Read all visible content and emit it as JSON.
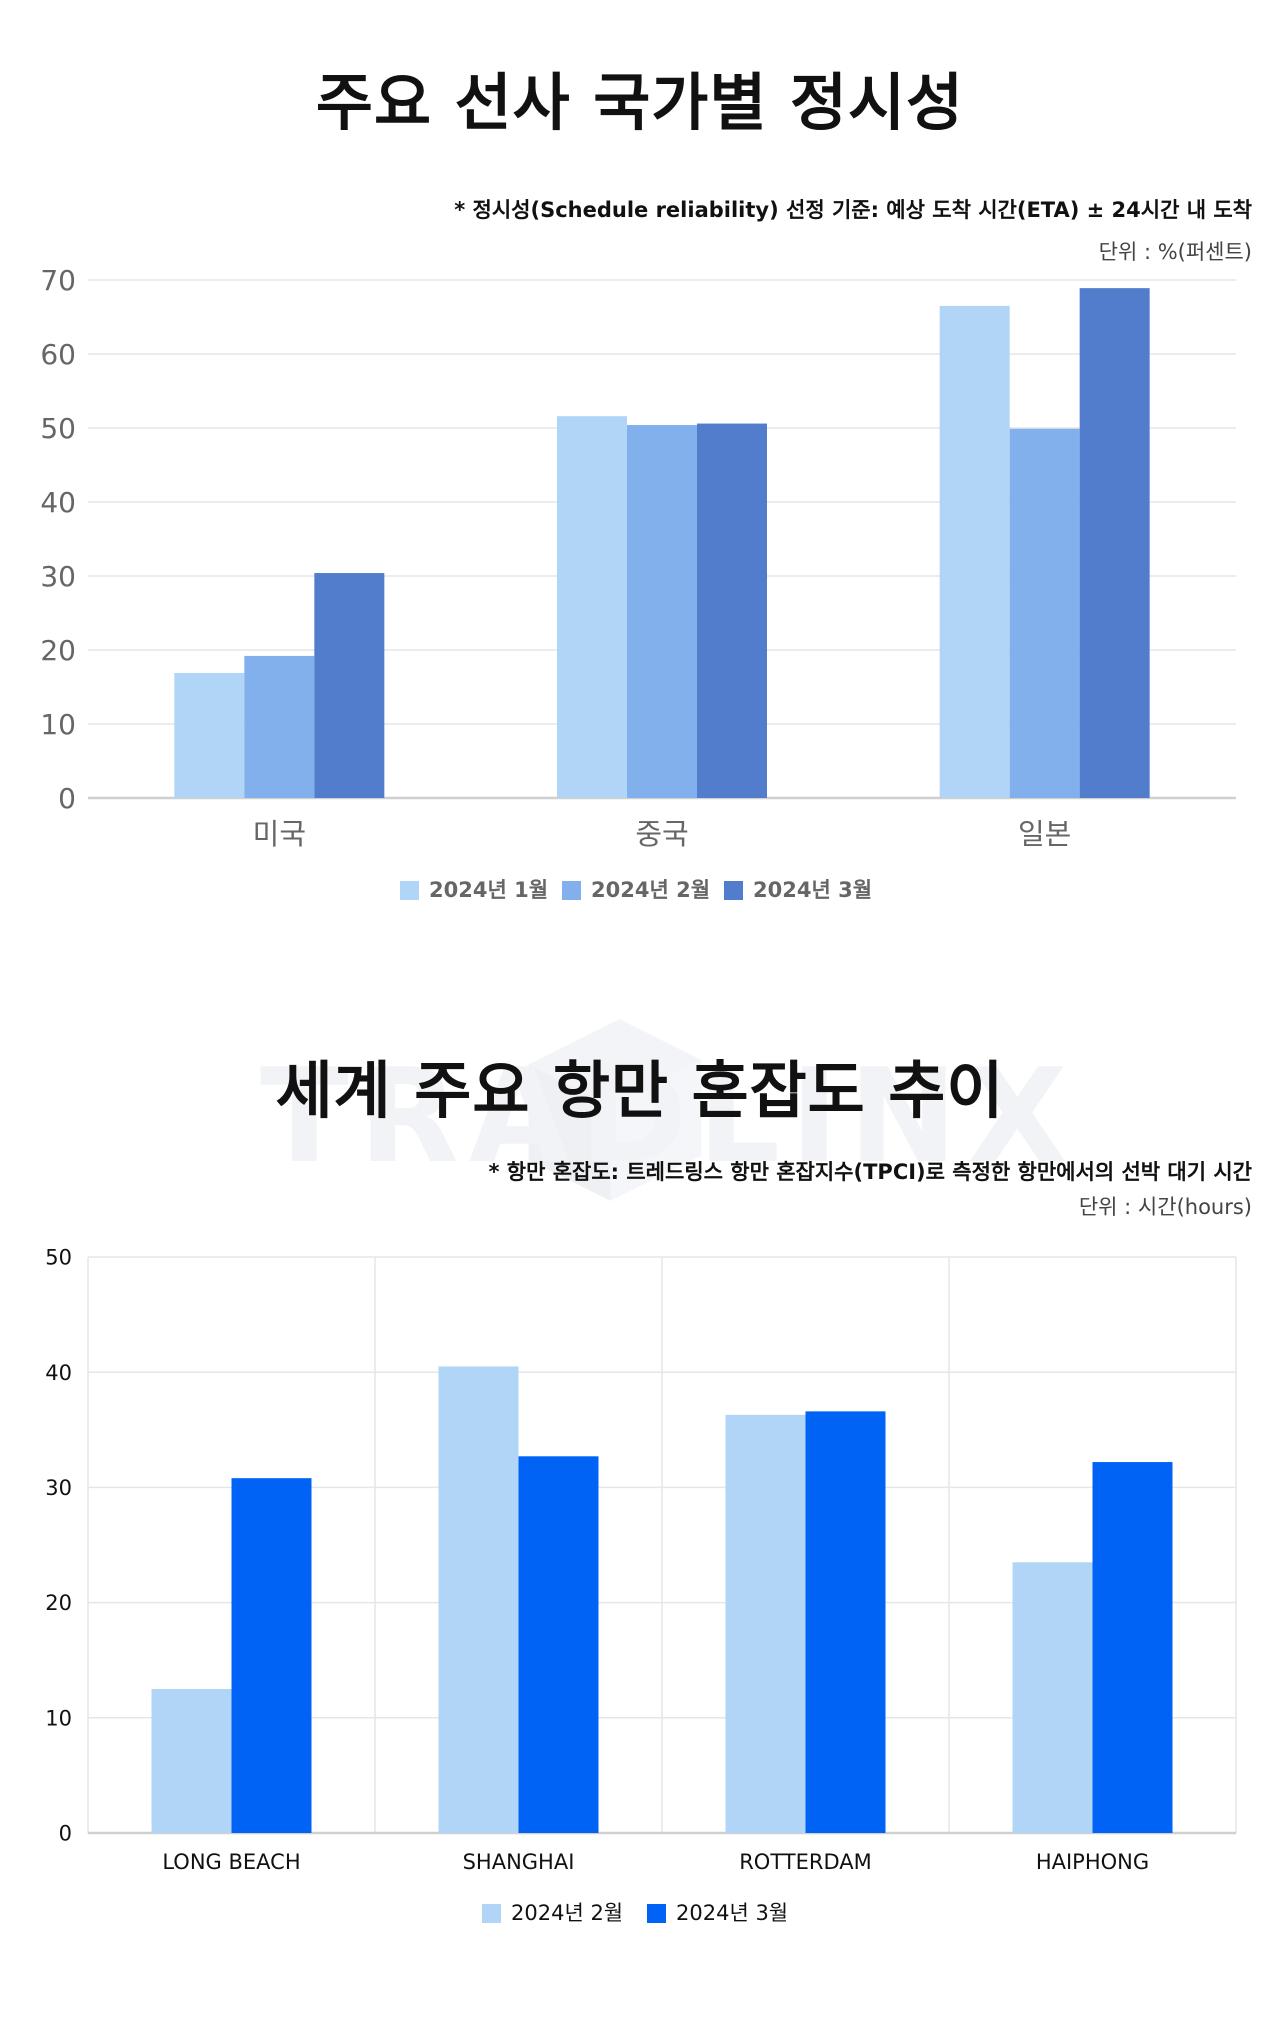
{
  "watermark": "TRADLINX",
  "chart_data": [
    {
      "type": "bar",
      "title": "주요 선사 국가별 정시성",
      "note": "* 정시성(Schedule reliability) 선정 기준: 예상 도착 시간(ETA) ± 24시간 내 도착",
      "unit": "단위 : %(퍼센트)",
      "categories": [
        "미국",
        "중국",
        "일본"
      ],
      "series": [
        {
          "name": "2024년 1월",
          "color": "#b0d5f7",
          "values": [
            16.9,
            51.6,
            66.5
          ]
        },
        {
          "name": "2024년 2월",
          "color": "#82b0ec",
          "values": [
            19.2,
            50.4,
            49.9
          ]
        },
        {
          "name": "2024년 3월",
          "color": "#527dcc",
          "values": [
            30.4,
            50.6,
            68.9
          ]
        }
      ],
      "yticks": [
        0,
        10,
        20,
        30,
        40,
        50,
        60,
        70
      ],
      "ylim": [
        0,
        70
      ],
      "grid": true,
      "legend": "bottom"
    },
    {
      "type": "bar",
      "title": "세계 주요 항만 혼잡도 추이",
      "note": "* 항만 혼잡도: 트레드링스 항만 혼잡지수(TPCI)로 측정한 항만에서의 선박 대기 시간",
      "unit": "단위 : 시간(hours)",
      "categories": [
        "LONG BEACH",
        "SHANGHAI",
        "ROTTERDAM",
        "HAIPHONG"
      ],
      "series": [
        {
          "name": "2024년 2월",
          "color": "#b0d5f7",
          "values": [
            12.5,
            40.5,
            36.3,
            23.5
          ]
        },
        {
          "name": "2024년 3월",
          "color": "#0063f5",
          "values": [
            30.8,
            32.7,
            36.6,
            32.2
          ]
        }
      ],
      "yticks": [
        0,
        10,
        20,
        30,
        40,
        50
      ],
      "ylim": [
        0,
        50
      ],
      "grid": true,
      "legend": "bottom"
    }
  ]
}
